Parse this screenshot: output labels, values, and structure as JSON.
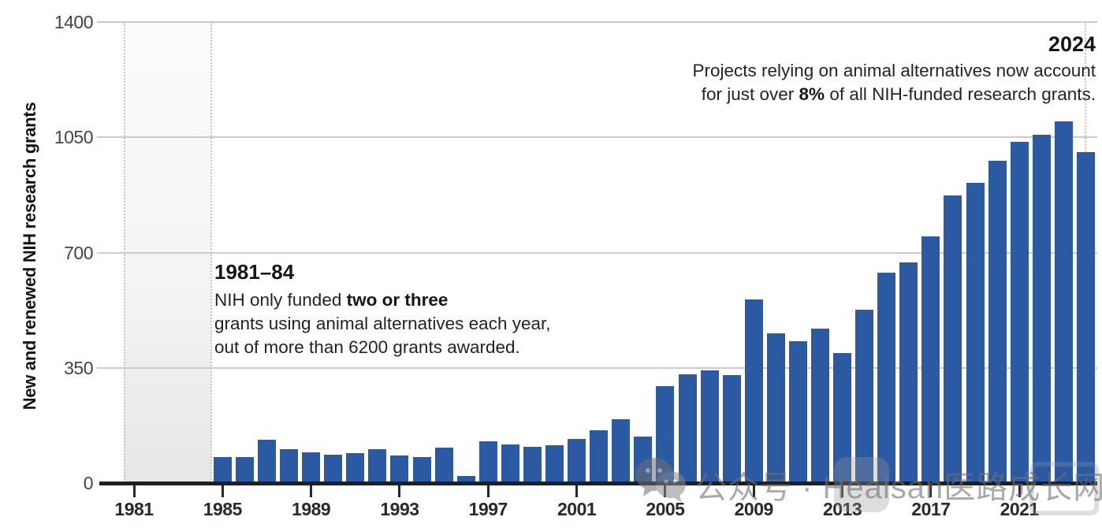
{
  "page": {
    "background": "#ffffff",
    "watermark": {
      "icon": "wechat-icon",
      "text": "公众号 · Healsan医路成长网",
      "color": "rgba(112,112,112,0.6)"
    }
  },
  "colors": {
    "bar": "#2b5aa2",
    "axis": "#1f1f1f",
    "gridline": "#cbcbcb",
    "tick_label": "#242933",
    "band_edge_dotted": "#c6c6c6"
  },
  "annotations": {
    "early": {
      "title": "1981–84",
      "line1_pre": "NIH only funded ",
      "line1_bold": "two or three",
      "line2": "grants using animal alternatives each year,",
      "line3": "out of more than 6200 grants awarded."
    },
    "latest": {
      "title": "2024",
      "line1": "Projects relying on animal alternatives now account",
      "line2_pre": "for just over ",
      "line2_bold": "8%",
      "line2_post": " of all NIH-funded research grants."
    }
  },
  "chart_data": {
    "type": "bar",
    "title": "",
    "xlabel": "",
    "ylabel": "New and renewed NIH research grants",
    "ylim": [
      0,
      1400
    ],
    "yticks": [
      0,
      350,
      700,
      1050,
      1400
    ],
    "xticks": [
      1981,
      1985,
      1989,
      1993,
      1997,
      2001,
      2005,
      2009,
      2013,
      2017,
      2021
    ],
    "grid": "horizontal",
    "legend": "none",
    "highlight_band_years": [
      1981,
      1984
    ],
    "guide_line_year": 2024,
    "categories": [
      1981,
      1982,
      1983,
      1984,
      1985,
      1986,
      1987,
      1988,
      1989,
      1990,
      1991,
      1992,
      1993,
      1994,
      1995,
      1996,
      1997,
      1998,
      1999,
      2000,
      2001,
      2002,
      2003,
      2004,
      2005,
      2006,
      2007,
      2008,
      2009,
      2010,
      2011,
      2012,
      2013,
      2014,
      2015,
      2016,
      2017,
      2018,
      2019,
      2020,
      2021,
      2022,
      2023,
      2024
    ],
    "values": [
      3,
      3,
      2,
      3,
      80,
      79,
      131,
      103,
      93,
      87,
      92,
      103,
      83,
      79,
      108,
      21,
      127,
      117,
      111,
      116,
      133,
      160,
      193,
      141,
      295,
      331,
      343,
      327,
      557,
      455,
      431,
      469,
      394,
      526,
      638,
      670,
      749,
      874,
      911,
      979,
      1036,
      1058,
      1098,
      1004
    ]
  }
}
